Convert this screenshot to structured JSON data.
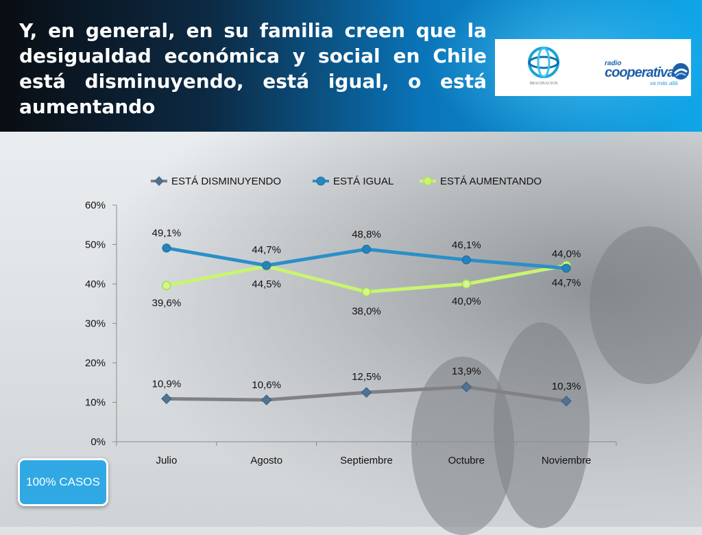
{
  "title": "Y, en general, en su familia creen que la desigualdad económica y social en Chile está disminuyendo, está igual, o está aumentando",
  "logos": {
    "imaginacion": "IMAGINACION",
    "cooperativa_small": "radio",
    "cooperativa": "cooperativa",
    "cooperativa_tag": "va más allá"
  },
  "cases_label": "100% CASOS",
  "colors": {
    "disminuyendo": "#7f8184",
    "igual": "#2b8fc7",
    "aumentando": "#c8f56e"
  },
  "chart_data": {
    "type": "line",
    "title": "",
    "xlabel": "",
    "ylabel": "",
    "categories": [
      "Julio",
      "Agosto",
      "Septiembre",
      "Octubre",
      "Noviembre"
    ],
    "yticks": [
      "0%",
      "10%",
      "20%",
      "30%",
      "40%",
      "50%",
      "60%"
    ],
    "ylim": [
      0,
      60
    ],
    "legend_position": "top",
    "grid": false,
    "series": [
      {
        "name": "ESTÁ DISMINUYENDO",
        "values": [
          10.9,
          10.6,
          12.5,
          13.9,
          10.3
        ],
        "labels": [
          "10,9%",
          "10,6%",
          "12,5%",
          "13,9%",
          "10,3%"
        ]
      },
      {
        "name": "ESTÁ IGUAL",
        "values": [
          49.1,
          44.7,
          48.8,
          46.1,
          44.0
        ],
        "labels": [
          "49,1%",
          "44,7%",
          "48,8%",
          "46,1%",
          "44,0%"
        ]
      },
      {
        "name": "ESTÁ AUMENTANDO",
        "values": [
          39.6,
          44.5,
          38.0,
          40.0,
          44.7
        ],
        "labels": [
          "39,6%",
          "44,5%",
          "38,0%",
          "40,0%",
          "44,7%"
        ]
      }
    ]
  }
}
